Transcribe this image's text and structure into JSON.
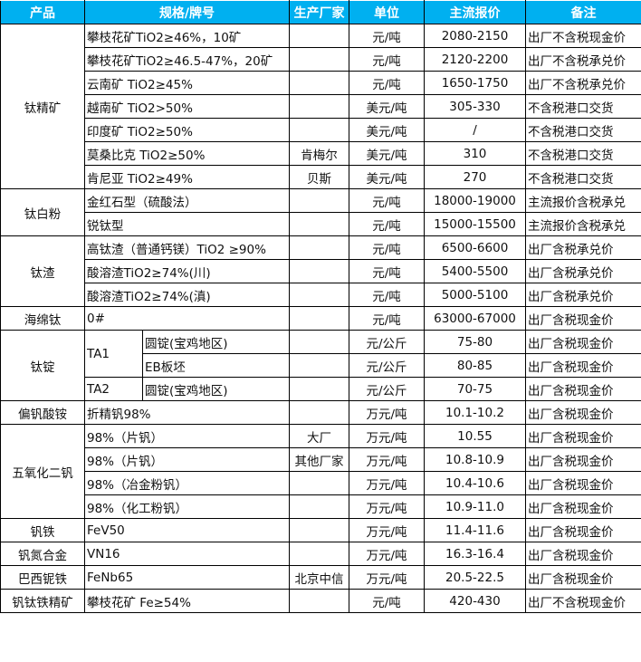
{
  "header_color": "#00B0F0",
  "headers": [
    "产品",
    "规格/牌号",
    "生产厂家",
    "单位",
    "主流报价",
    "备注"
  ],
  "groups": [
    {
      "product": "钛精矿",
      "rows": [
        {
          "spec": "攀枝花矿TiO2≥46%，10矿",
          "maker": "",
          "unit": "元/吨",
          "price": "2080-2150",
          "note": "出厂不含税现金价"
        },
        {
          "spec": "攀枝花矿TiO2≥46.5-47%，20矿",
          "maker": "",
          "unit": "元/吨",
          "price": "2120-2200",
          "note": "出厂不含税承兑价"
        },
        {
          "spec": "云南矿 TiO2≥45%",
          "maker": "",
          "unit": "元/吨",
          "price": "1650-1750",
          "note": "出厂不含税承兑价"
        },
        {
          "spec": "越南矿 TiO2>50%",
          "maker": "",
          "unit": "美元/吨",
          "price": "305-330",
          "note": "不含税港口交货"
        },
        {
          "spec": "印度矿 TiO2≥50%",
          "maker": "",
          "unit": "美元/吨",
          "price": "/",
          "note": "不含税港口交货"
        },
        {
          "spec": "莫桑比克 TiO2≥50%",
          "maker": "肯梅尔",
          "unit": "美元/吨",
          "price": "310",
          "note": "不含税港口交货"
        },
        {
          "spec": "肯尼亚 TiO2≥49%",
          "maker": "贝斯",
          "unit": "美元/吨",
          "price": "270",
          "note": "不含税港口交货"
        }
      ]
    },
    {
      "product": "钛白粉",
      "rows": [
        {
          "spec": "金红石型（硫酸法）",
          "maker": "",
          "unit": "元/吨",
          "price": "18000-19000",
          "note": "主流报价含税承兑"
        },
        {
          "spec": "锐钛型",
          "maker": "",
          "unit": "元/吨",
          "price": "15000-15500",
          "note": "主流报价含税承兑"
        }
      ]
    },
    {
      "product": "钛渣",
      "rows": [
        {
          "spec": "高钛渣（普通钙镁）TiO2 ≥90%",
          "maker": "",
          "unit": "元/吨",
          "price": "6500-6600",
          "note": "出厂含税承兑价"
        },
        {
          "spec": "酸溶渣TiO2≥74%(川)",
          "maker": "",
          "unit": "元/吨",
          "price": "5400-5500",
          "note": "出厂含税承兑价"
        },
        {
          "spec": "酸溶渣TiO2≥74%(滇)",
          "maker": "",
          "unit": "元/吨",
          "price": "5000-5100",
          "note": "出厂含税承兑价"
        }
      ]
    },
    {
      "product": "海绵钛",
      "rows": [
        {
          "spec": "0#",
          "maker": "",
          "unit": "元/吨",
          "price": "63000-67000",
          "note": "出厂含税现金价"
        }
      ]
    },
    {
      "product": "钛锭",
      "rows": [
        {
          "grade": "TA1",
          "spec": "圆锭(宝鸡地区)",
          "maker": "",
          "unit": "元/公斤",
          "price": "75-80",
          "note": "出厂含税现金价"
        },
        {
          "grade": "TA1",
          "spec": "EB板坯",
          "maker": "",
          "unit": "元/公斤",
          "price": "80-85",
          "note": "出厂含税现金价"
        },
        {
          "grade": "TA2",
          "spec": "圆锭(宝鸡地区)",
          "maker": "",
          "unit": "元/公斤",
          "price": "70-75",
          "note": "出厂含税现金价"
        }
      ]
    },
    {
      "product": "偏钒酸铵",
      "rows": [
        {
          "spec": "折精钒98%",
          "maker": "",
          "unit": "万元/吨",
          "price": "10.1-10.2",
          "note": "出厂含税现金价"
        }
      ]
    },
    {
      "product": "五氧化二钒",
      "rows": [
        {
          "spec": "98%（片钒）",
          "maker": "大厂",
          "unit": "万元/吨",
          "price": "10.55",
          "note": "出厂含税现金价"
        },
        {
          "spec": "98%（片钒）",
          "maker": "其他厂家",
          "unit": "万元/吨",
          "price": "10.8-10.9",
          "note": "出厂含税现金价"
        },
        {
          "spec": "98%（冶金粉钒）",
          "maker": "",
          "unit": "万元/吨",
          "price": "10.4-10.6",
          "note": "出厂含税现金价"
        },
        {
          "spec": "98%（化工粉钒）",
          "maker": "",
          "unit": "万元/吨",
          "price": "10.9-11.0",
          "note": "出厂含税现金价"
        }
      ]
    },
    {
      "product": "钒铁",
      "rows": [
        {
          "spec": "FeV50",
          "maker": "",
          "unit": "万元/吨",
          "price": "11.4-11.6",
          "note": "出厂含税现金价"
        }
      ]
    },
    {
      "product": "钒氮合金",
      "rows": [
        {
          "spec": "VN16",
          "maker": "",
          "unit": "万元/吨",
          "price": "16.3-16.4",
          "note": "出厂含税现金价"
        }
      ]
    },
    {
      "product": "巴西铌铁",
      "rows": [
        {
          "spec": "FeNb65",
          "maker": "北京中信",
          "unit": "万元/吨",
          "price": "20.5-22.5",
          "note": "出厂含税现金价"
        }
      ]
    },
    {
      "product": "钒钛铁精矿",
      "rows": [
        {
          "spec": "攀枝花矿 Fe≥54%",
          "maker": "",
          "unit": "元/吨",
          "price": "420-430",
          "note": "出厂不含税现金价"
        }
      ]
    }
  ]
}
